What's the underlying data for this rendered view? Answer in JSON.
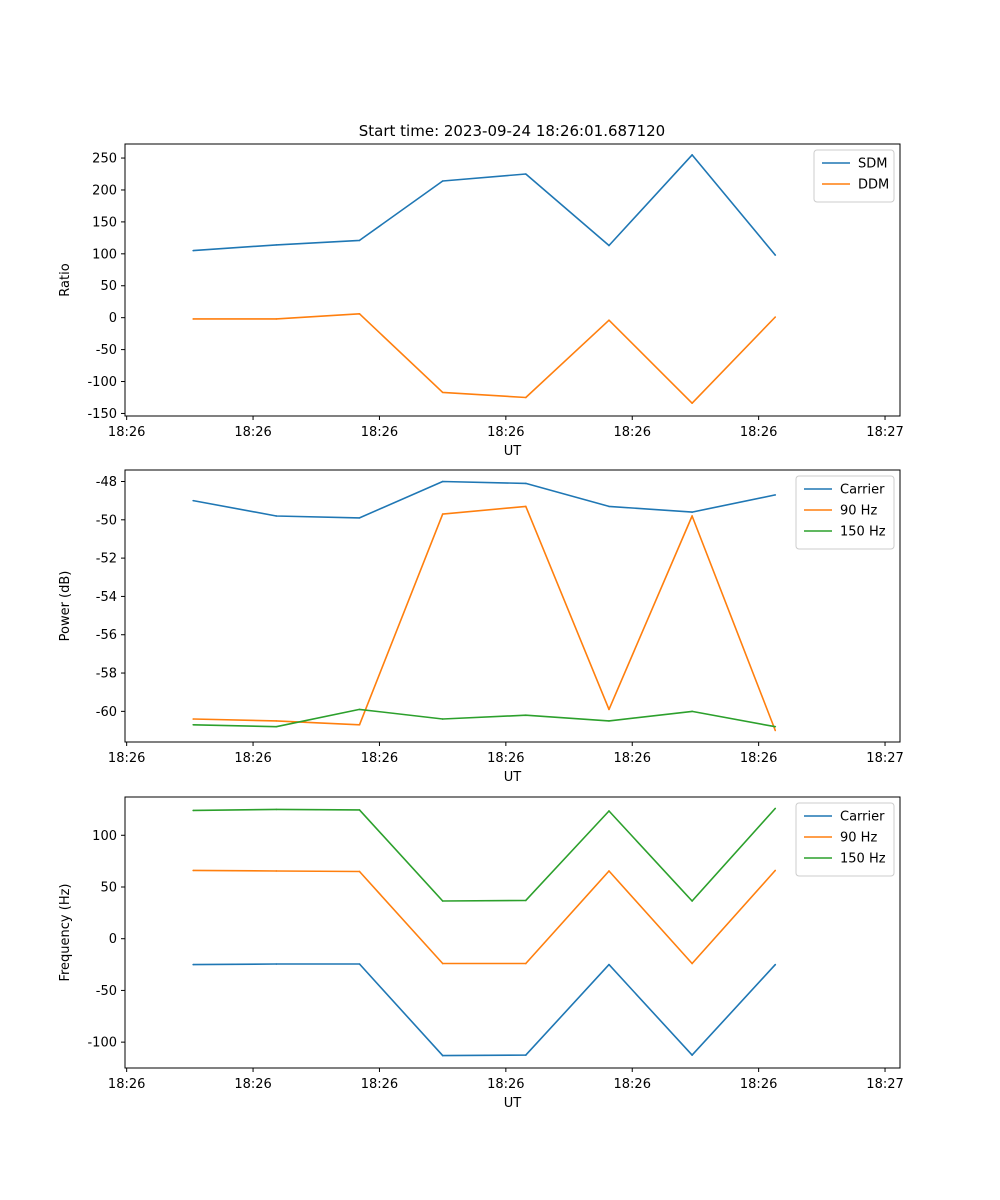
{
  "figure_title": "Start time: 2023-09-24 18:26:01.687120",
  "colors": {
    "blue": "#1f77b4",
    "orange": "#ff7f0e",
    "green": "#2ca02c"
  },
  "chart_data": [
    {
      "type": "line",
      "title": "Start time: 2023-09-24 18:26:01.687120",
      "xlabel": "UT",
      "ylabel": "Ratio",
      "x": [
        1,
        2,
        3,
        4,
        5,
        6,
        7,
        8
      ],
      "xlim": [
        0.18,
        9.5
      ],
      "xticks": [
        0.2,
        1.72,
        3.24,
        4.76,
        6.28,
        7.8,
        9.32
      ],
      "xtick_labels": [
        "18:26",
        "18:26",
        "18:26",
        "18:26",
        "18:26",
        "18:26",
        "18:27"
      ],
      "ylim": [
        -154,
        272
      ],
      "yticks": [
        -150,
        -100,
        -50,
        0,
        50,
        100,
        150,
        200,
        250
      ],
      "legend_loc": "upper right",
      "series": [
        {
          "name": "SDM",
          "color": "#1f77b4",
          "values": [
            105,
            114,
            121,
            214,
            225,
            113,
            255,
            98
          ]
        },
        {
          "name": "DDM",
          "color": "#ff7f0e",
          "values": [
            -2,
            -2,
            6,
            -117,
            -125,
            -4,
            -134,
            1
          ]
        }
      ]
    },
    {
      "type": "line",
      "xlabel": "UT",
      "ylabel": "Power (dB)",
      "x": [
        1,
        2,
        3,
        4,
        5,
        6,
        7,
        8
      ],
      "xlim": [
        0.18,
        9.5
      ],
      "xticks": [
        0.2,
        1.72,
        3.24,
        4.76,
        6.28,
        7.8,
        9.32
      ],
      "xtick_labels": [
        "18:26",
        "18:26",
        "18:26",
        "18:26",
        "18:26",
        "18:26",
        "18:27"
      ],
      "ylim": [
        -61.6,
        -47.4
      ],
      "yticks": [
        -60,
        -58,
        -56,
        -54,
        -52,
        -50,
        -48
      ],
      "legend_loc": "upper right",
      "series": [
        {
          "name": "Carrier",
          "color": "#1f77b4",
          "values": [
            -49.0,
            -49.8,
            -49.9,
            -48.0,
            -48.1,
            -49.3,
            -49.6,
            -48.7
          ]
        },
        {
          "name": "90 Hz",
          "color": "#ff7f0e",
          "values": [
            -60.4,
            -60.5,
            -60.7,
            -49.7,
            -49.3,
            -59.9,
            -49.8,
            -61.0
          ]
        },
        {
          "name": "150 Hz",
          "color": "#2ca02c",
          "values": [
            -60.7,
            -60.8,
            -59.9,
            -60.4,
            -60.2,
            -60.5,
            -60.0,
            -60.8
          ]
        }
      ]
    },
    {
      "type": "line",
      "xlabel": "UT",
      "ylabel": "Frequency (Hz)",
      "x": [
        1,
        2,
        3,
        4,
        5,
        6,
        7,
        8
      ],
      "xlim": [
        0.18,
        9.5
      ],
      "xticks": [
        0.2,
        1.72,
        3.24,
        4.76,
        6.28,
        7.8,
        9.32
      ],
      "xtick_labels": [
        "18:26",
        "18:26",
        "18:26",
        "18:26",
        "18:26",
        "18:26",
        "18:27"
      ],
      "ylim": [
        -125,
        137
      ],
      "yticks": [
        -100,
        -50,
        0,
        50,
        100
      ],
      "legend_loc": "upper right",
      "series": [
        {
          "name": "Carrier",
          "color": "#1f77b4",
          "values": [
            -25,
            -24.5,
            -24.5,
            -113,
            -112.5,
            -25,
            -112.5,
            -25
          ]
        },
        {
          "name": "90 Hz",
          "color": "#ff7f0e",
          "values": [
            66,
            65.5,
            65,
            -24,
            -24,
            65.5,
            -24,
            66
          ]
        },
        {
          "name": "150 Hz",
          "color": "#2ca02c",
          "values": [
            124,
            125,
            124.5,
            36.5,
            37,
            123.5,
            36.5,
            126
          ]
        }
      ]
    }
  ]
}
